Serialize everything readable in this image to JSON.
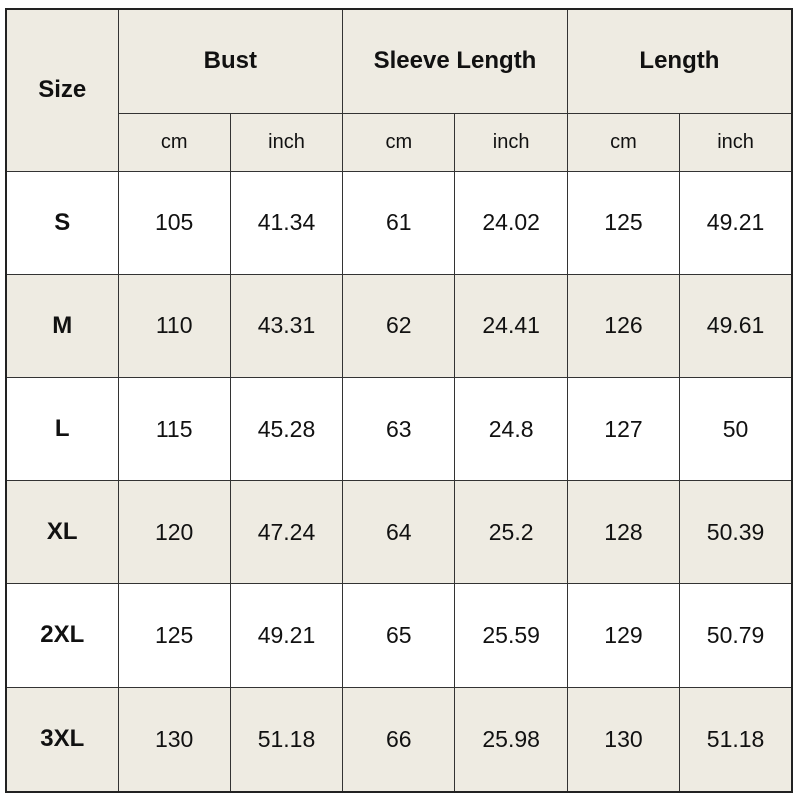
{
  "table": {
    "size_header": "Size",
    "groups": [
      "Bust",
      "Sleeve Length",
      "Length"
    ],
    "units": [
      "cm",
      "inch",
      "cm",
      "inch",
      "cm",
      "inch"
    ],
    "rows": [
      {
        "size": "S",
        "values": [
          "105",
          "41.34",
          "61",
          "24.02",
          "125",
          "49.21"
        ]
      },
      {
        "size": "M",
        "values": [
          "110",
          "43.31",
          "62",
          "24.41",
          "126",
          "49.61"
        ]
      },
      {
        "size": "L",
        "values": [
          "115",
          "45.28",
          "63",
          "24.8",
          "127",
          "50"
        ]
      },
      {
        "size": "XL",
        "values": [
          "120",
          "47.24",
          "64",
          "25.2",
          "128",
          "50.39"
        ]
      },
      {
        "size": "2XL",
        "values": [
          "125",
          "49.21",
          "65",
          "25.59",
          "129",
          "50.79"
        ]
      },
      {
        "size": "3XL",
        "values": [
          "130",
          "51.18",
          "66",
          "25.98",
          "130",
          "51.18"
        ]
      }
    ]
  },
  "colors": {
    "header_bg": "#eeebe2",
    "alt_row_bg": "#eeebe2",
    "border": "#333333"
  }
}
